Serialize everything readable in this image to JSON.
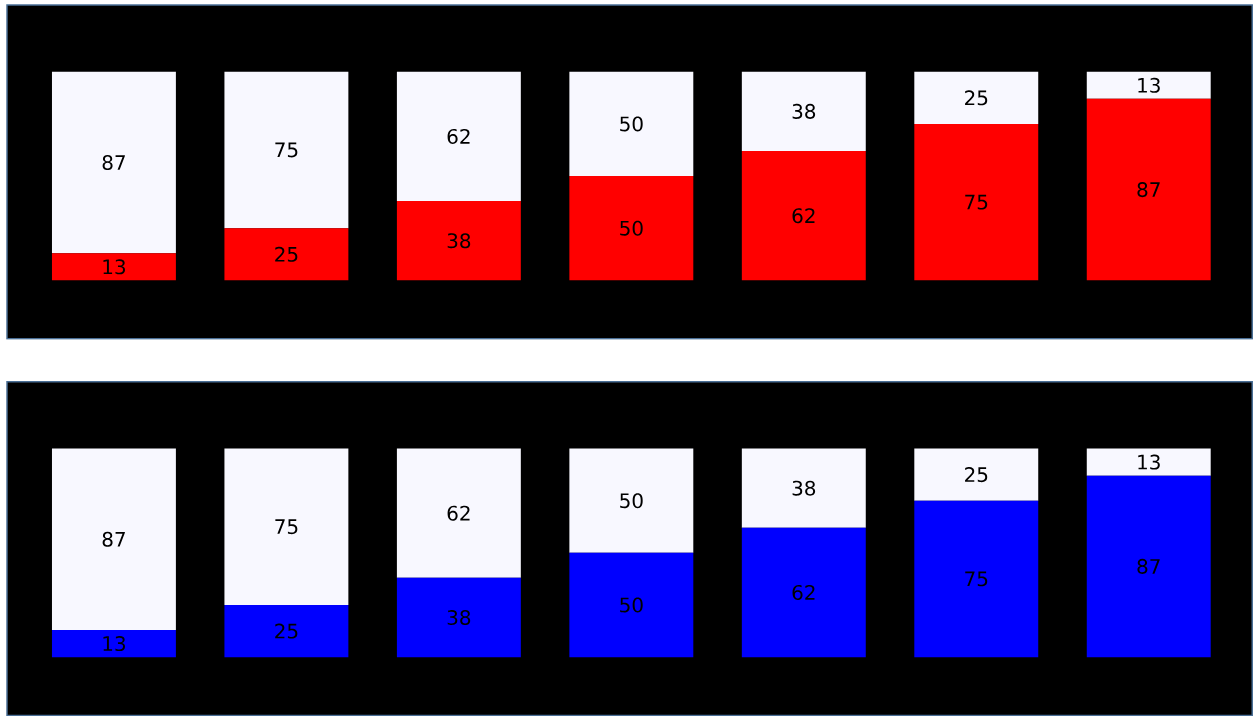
{
  "chart_data": [
    {
      "type": "bar",
      "stacked": true,
      "data_labels": true,
      "categories": [
        null,
        null,
        null,
        null,
        null,
        null,
        null
      ],
      "series": [
        {
          "color": "#ff0000",
          "values": [
            13,
            25,
            38,
            50,
            62,
            75,
            87
          ]
        },
        {
          "color": "#f8f8ff",
          "values": [
            87,
            75,
            62,
            50,
            38,
            25,
            13
          ]
        }
      ]
    },
    {
      "type": "bar",
      "stacked": true,
      "data_labels": true,
      "categories": [
        null,
        null,
        null,
        null,
        null,
        null,
        null
      ],
      "series": [
        {
          "color": "#0000ff",
          "values": [
            13,
            25,
            38,
            50,
            62,
            75,
            87
          ]
        },
        {
          "color": "#f8f8ff",
          "values": [
            87,
            75,
            62,
            50,
            38,
            25,
            13
          ]
        }
      ]
    }
  ]
}
